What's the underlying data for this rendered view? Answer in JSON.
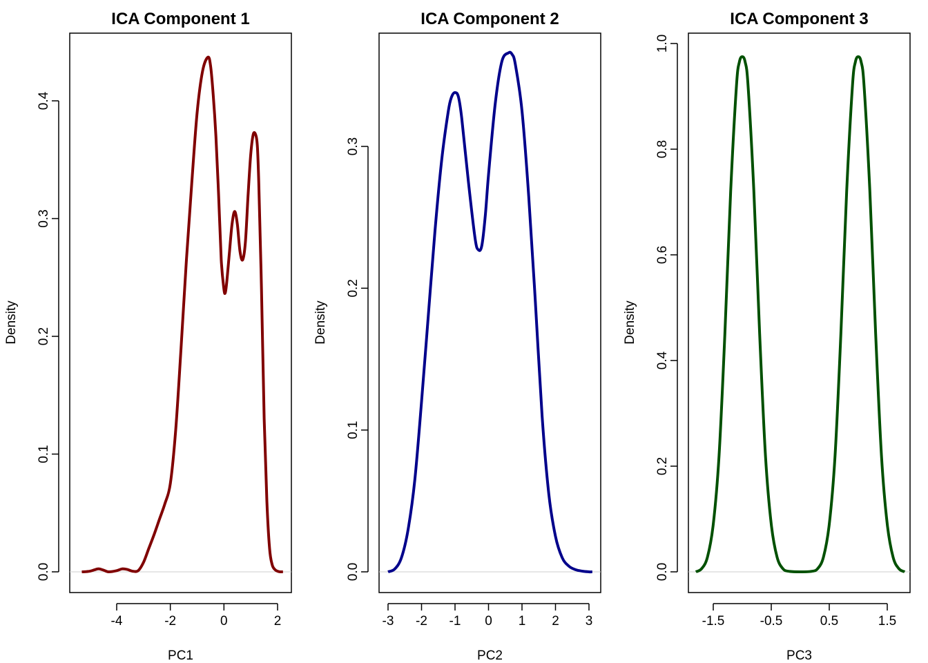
{
  "chart_data": [
    {
      "type": "line",
      "title": "ICA Component 1",
      "xlabel": "PC1",
      "ylabel": "Density",
      "xlim": [
        -5.4,
        2.2
      ],
      "ylim": [
        0.0,
        0.44
      ],
      "xticks": [
        -4,
        -2,
        0,
        2
      ],
      "xtick_labels": [
        "-4",
        "-2",
        "0",
        "2"
      ],
      "yticks": [
        0.0,
        0.1,
        0.2,
        0.3,
        0.4
      ],
      "ytick_labels": [
        "0.0",
        "0.1",
        "0.2",
        "0.3",
        "0.4"
      ],
      "grid": false,
      "zero_line": true,
      "color": "#800000",
      "series": [
        {
          "x": [
            -5.3,
            -5.0,
            -4.7,
            -4.5,
            -4.3,
            -4.0,
            -3.8,
            -3.6,
            -3.4,
            -3.2,
            -3.0,
            -2.8,
            -2.6,
            -2.4,
            -2.2,
            -2.0,
            -1.8,
            -1.6,
            -1.4,
            -1.2,
            -1.0,
            -0.8,
            -0.6,
            -0.5,
            -0.4,
            -0.3,
            -0.2,
            -0.1,
            0.0,
            0.05,
            0.1,
            0.2,
            0.3,
            0.4,
            0.5,
            0.6,
            0.7,
            0.8,
            0.9,
            1.0,
            1.1,
            1.2,
            1.25,
            1.3,
            1.4,
            1.5,
            1.6,
            1.7,
            1.8,
            1.9,
            2.0,
            2.1,
            2.2
          ],
          "y": [
            0.0,
            0.0005,
            0.0025,
            0.0015,
            0.0,
            0.001,
            0.0025,
            0.002,
            0.0005,
            0.001,
            0.008,
            0.02,
            0.032,
            0.045,
            0.058,
            0.075,
            0.12,
            0.19,
            0.265,
            0.33,
            0.39,
            0.425,
            0.437,
            0.43,
            0.405,
            0.37,
            0.32,
            0.265,
            0.24,
            0.237,
            0.245,
            0.27,
            0.295,
            0.306,
            0.295,
            0.272,
            0.265,
            0.28,
            0.32,
            0.355,
            0.372,
            0.37,
            0.36,
            0.33,
            0.24,
            0.13,
            0.06,
            0.02,
            0.006,
            0.002,
            0.0005,
            0.0,
            0.0
          ]
        }
      ]
    },
    {
      "type": "line",
      "title": "ICA Component 2",
      "xlabel": "PC2",
      "ylabel": "Density",
      "xlim": [
        -3.2,
        3.3
      ],
      "ylim": [
        0.0,
        0.37
      ],
      "xticks": [
        -3,
        -2,
        -1,
        0,
        1,
        2,
        3
      ],
      "xtick_labels": [
        "-3",
        "-2",
        "-1",
        "0",
        "1",
        "2",
        "3"
      ],
      "yticks": [
        0.0,
        0.1,
        0.2,
        0.3
      ],
      "ytick_labels": [
        "0.0",
        "0.1",
        "0.2",
        "0.3"
      ],
      "grid": false,
      "zero_line": true,
      "color": "#00008b",
      "series": [
        {
          "x": [
            -3.0,
            -2.8,
            -2.6,
            -2.4,
            -2.2,
            -2.0,
            -1.8,
            -1.6,
            -1.4,
            -1.2,
            -1.1,
            -1.0,
            -0.9,
            -0.8,
            -0.6,
            -0.4,
            -0.3,
            -0.2,
            -0.1,
            0.0,
            0.2,
            0.4,
            0.6,
            0.7,
            0.8,
            1.0,
            1.2,
            1.4,
            1.6,
            1.8,
            2.0,
            2.2,
            2.4,
            2.6,
            2.8,
            3.0,
            3.1
          ],
          "y": [
            0.0,
            0.002,
            0.01,
            0.03,
            0.065,
            0.12,
            0.18,
            0.24,
            0.29,
            0.325,
            0.335,
            0.338,
            0.335,
            0.32,
            0.275,
            0.235,
            0.227,
            0.23,
            0.25,
            0.28,
            0.33,
            0.36,
            0.366,
            0.365,
            0.358,
            0.325,
            0.265,
            0.19,
            0.11,
            0.055,
            0.025,
            0.01,
            0.004,
            0.0015,
            0.0005,
            0.0,
            0.0
          ]
        }
      ]
    },
    {
      "type": "line",
      "title": "ICA Component 3",
      "xlabel": "PC3",
      "ylabel": "Density",
      "xlim": [
        -1.9,
        1.9
      ],
      "ylim": [
        0.0,
        1.0
      ],
      "xticks": [
        -1.5,
        -0.5,
        0.5,
        1.5
      ],
      "xtick_labels": [
        "-1.5",
        "-0.5",
        "0.5",
        "1.5"
      ],
      "yticks": [
        0.0,
        0.2,
        0.4,
        0.6,
        0.8,
        1.0
      ],
      "ytick_labels": [
        "0.0",
        "0.2",
        "0.4",
        "0.6",
        "0.8",
        "1.0"
      ],
      "grid": false,
      "zero_line": true,
      "color": "#005000",
      "series": [
        {
          "x": [
            -1.8,
            -1.7,
            -1.6,
            -1.5,
            -1.4,
            -1.3,
            -1.2,
            -1.1,
            -1.05,
            -1.0,
            -0.95,
            -0.9,
            -0.8,
            -0.7,
            -0.6,
            -0.5,
            -0.4,
            -0.3,
            -0.2,
            0.0,
            0.2,
            0.3,
            0.4,
            0.5,
            0.6,
            0.7,
            0.8,
            0.9,
            0.95,
            1.0,
            1.05,
            1.1,
            1.2,
            1.3,
            1.4,
            1.5,
            1.6,
            1.7,
            1.8
          ],
          "y": [
            0.0,
            0.006,
            0.028,
            0.09,
            0.22,
            0.45,
            0.72,
            0.92,
            0.965,
            0.975,
            0.965,
            0.92,
            0.72,
            0.45,
            0.22,
            0.09,
            0.028,
            0.006,
            0.001,
            0.0,
            0.001,
            0.006,
            0.028,
            0.09,
            0.22,
            0.45,
            0.72,
            0.92,
            0.965,
            0.975,
            0.965,
            0.92,
            0.72,
            0.45,
            0.22,
            0.09,
            0.028,
            0.006,
            0.0
          ]
        }
      ]
    }
  ]
}
